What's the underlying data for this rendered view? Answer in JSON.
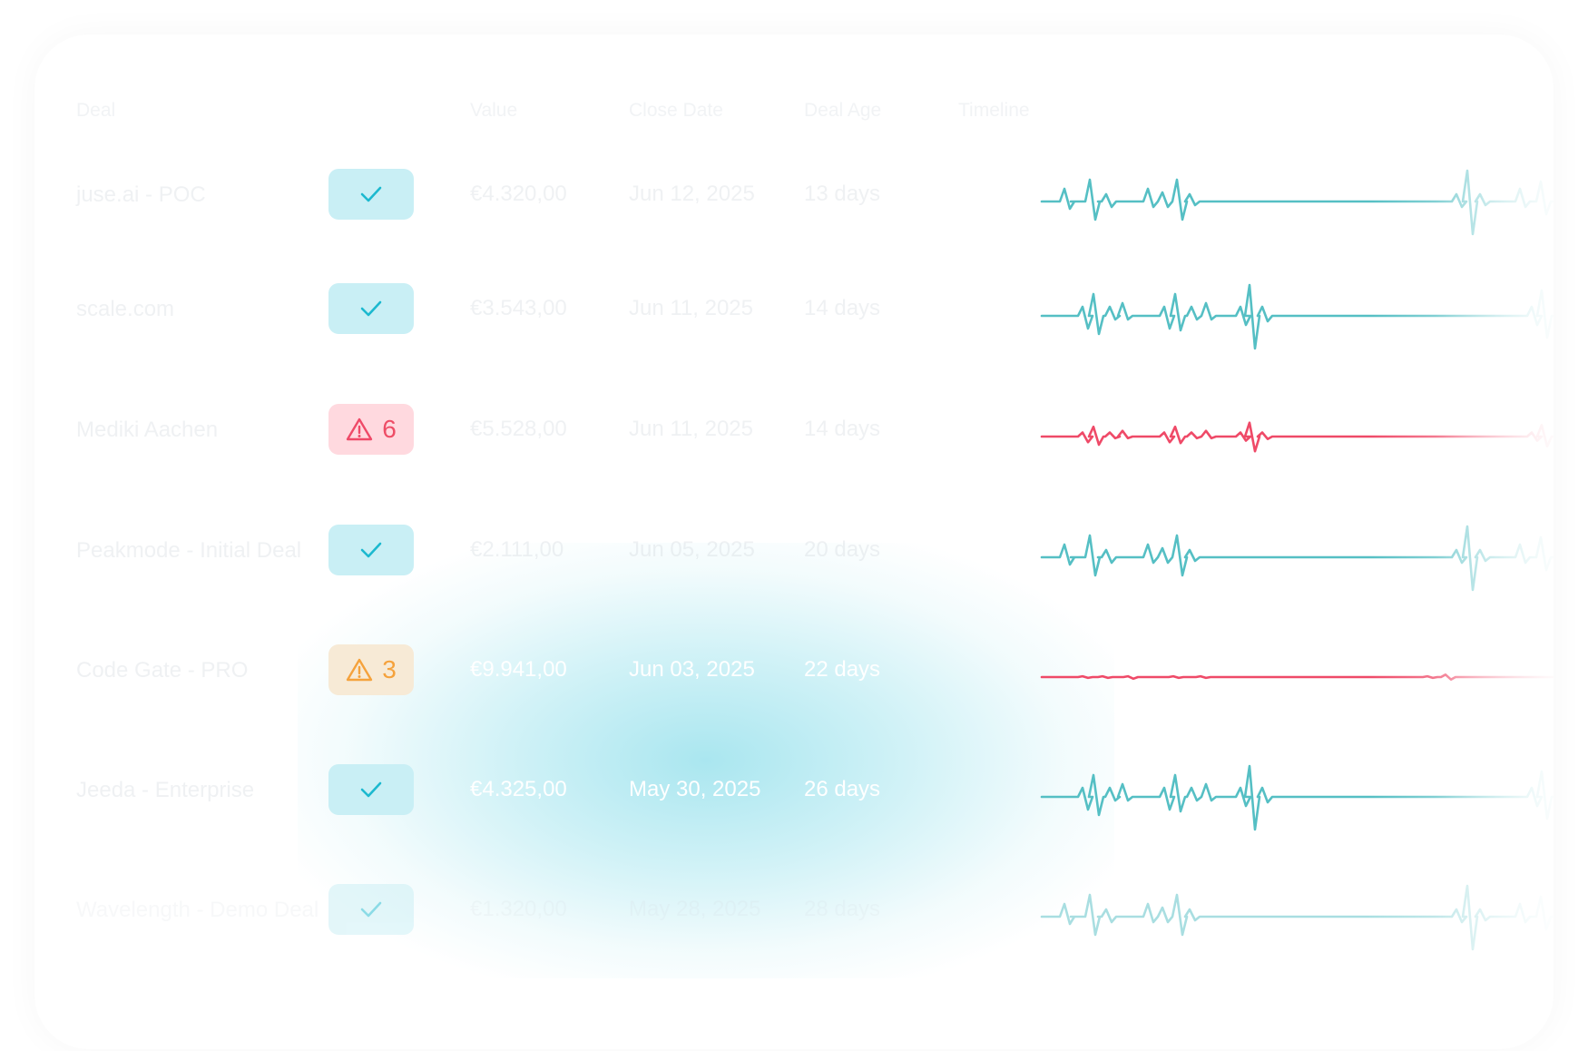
{
  "table": {
    "columns": {
      "deal": "Deal",
      "value": "Value",
      "close_date": "Close Date",
      "deal_age": "Deal Age",
      "timeline": "Timeline"
    },
    "rows": [
      {
        "deal": "juse.ai - POC",
        "status": "ok",
        "count": "",
        "value": "€4.320,00",
        "close_date": "Jun 12, 2025",
        "deal_age": "13 days",
        "trend": "teal",
        "variant": "a"
      },
      {
        "deal": "scale.com",
        "status": "ok",
        "count": "",
        "value": "€3.543,00",
        "close_date": "Jun 11, 2025",
        "deal_age": "14 days",
        "trend": "teal",
        "variant": "b"
      },
      {
        "deal": "Mediki Aachen",
        "status": "error",
        "count": "6",
        "value": "€5.528,00",
        "close_date": "Jun 11, 2025",
        "deal_age": "14 days",
        "trend": "red",
        "variant": "b"
      },
      {
        "deal": "Peakmode - Initial Deal",
        "status": "ok",
        "count": "",
        "value": "€2.111,00",
        "close_date": "Jun 05, 2025",
        "deal_age": "20 days",
        "trend": "teal",
        "variant": "a"
      },
      {
        "deal": "Code Gate - PRO",
        "status": "warning",
        "count": "3",
        "value": "€9.941,00",
        "close_date": "Jun 03, 2025",
        "deal_age": "22 days",
        "trend": "red",
        "variant": "c"
      },
      {
        "deal": "Jeeda - Enterprise",
        "status": "ok",
        "count": "",
        "value": "€4.325,00",
        "close_date": "May 30, 2025",
        "deal_age": "26 days",
        "trend": "teal",
        "variant": "b"
      },
      {
        "deal": "Wavelength - Demo Deal",
        "status": "ok",
        "count": "",
        "value": "€1.320,00",
        "close_date": "May 28, 2025",
        "deal_age": "28 days",
        "trend": "teal",
        "variant": "a"
      }
    ]
  },
  "colors": {
    "teal": "#55bfc4",
    "red": "#ef4a68",
    "check": "#1cb9cf",
    "amber": "#f5a23c"
  },
  "icons": {
    "ok": "check-icon",
    "error": "warning-triangle-icon",
    "warning": "warning-triangle-icon"
  }
}
